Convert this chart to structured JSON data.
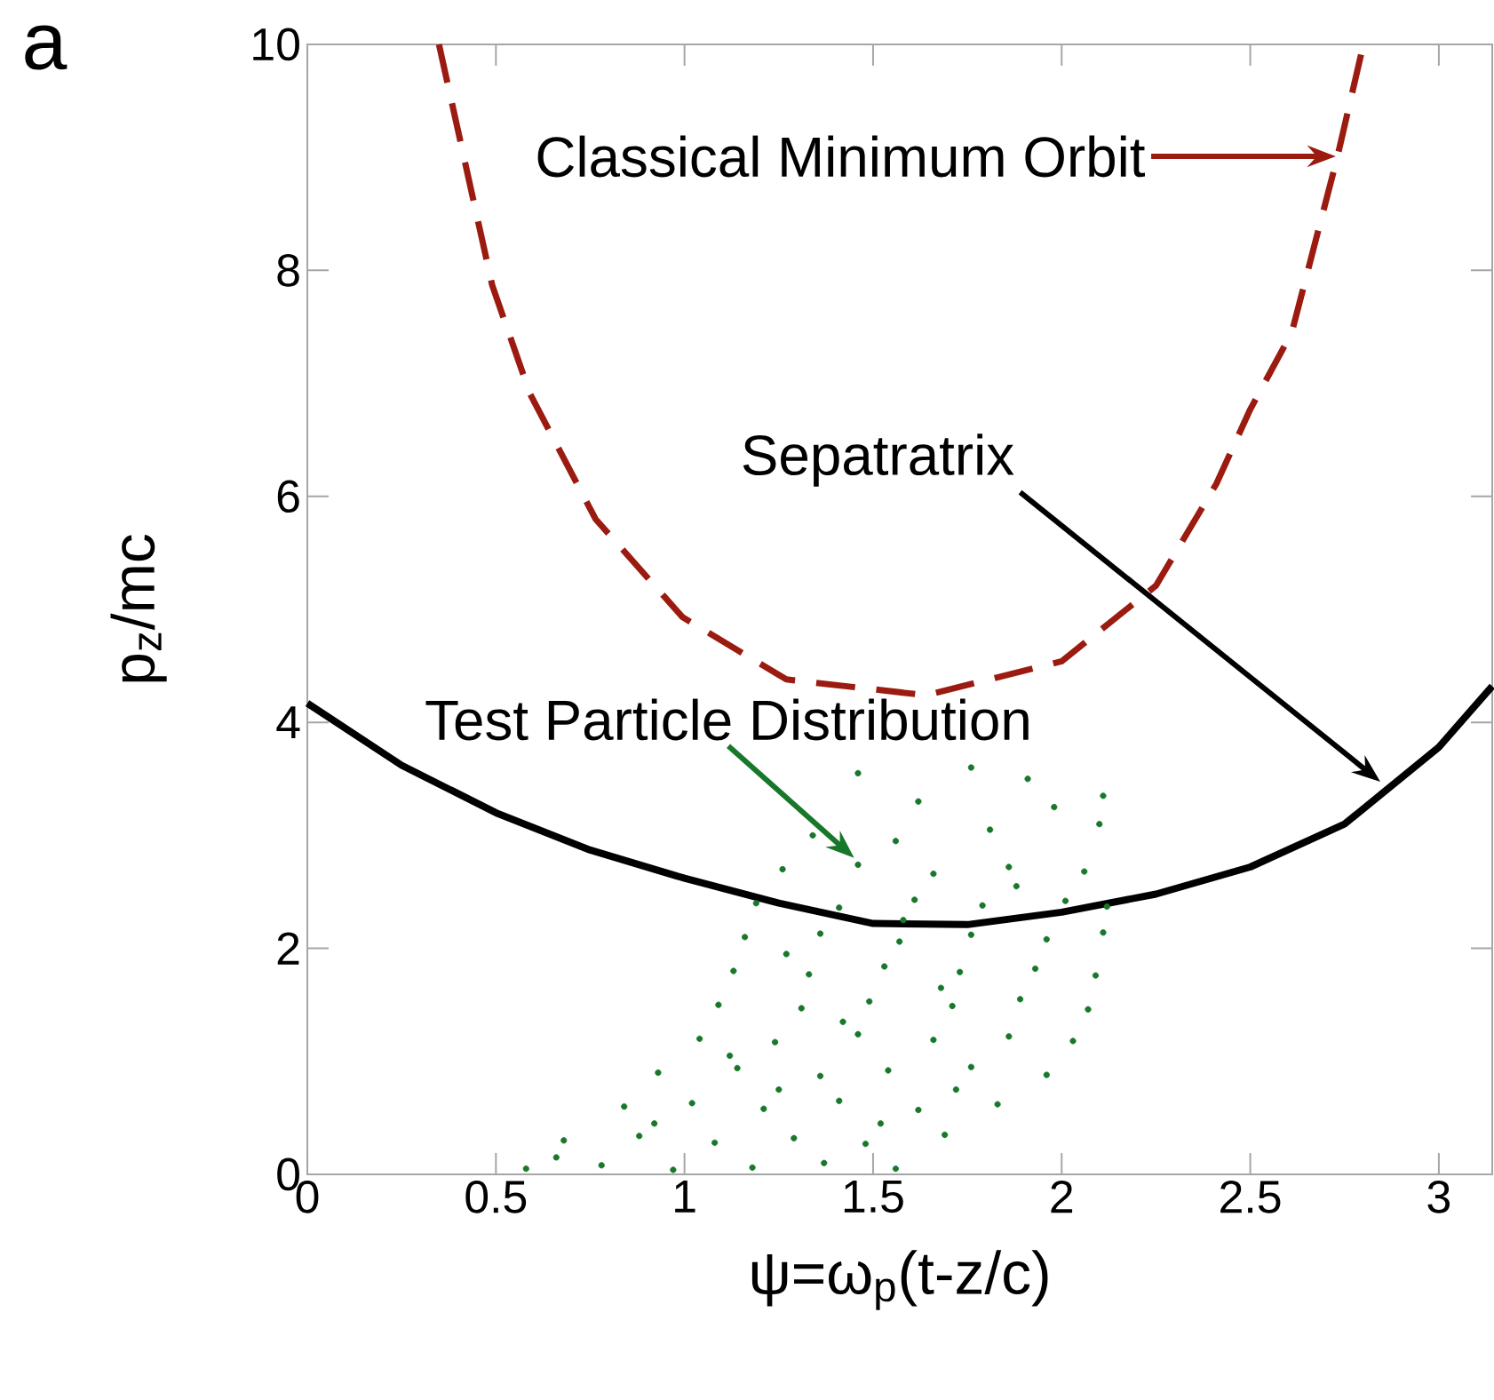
{
  "chart_data": {
    "type": "line",
    "title": "a",
    "xlabel": "ψ=ω$_{p}$(t-z/c)",
    "ylabel": "p$_{z}$/mc",
    "xlim": [
      0,
      3.1416
    ],
    "ylim": [
      0,
      10
    ],
    "xticks": [
      0,
      0.5,
      1,
      1.5,
      2,
      2.5,
      3
    ],
    "yticks": [
      0,
      2,
      4,
      6,
      8,
      10
    ],
    "grid": false,
    "series": [
      {
        "type": "scatter",
        "marker": "circle",
        "color": "#17782a",
        "x": [
          0.58,
          0.78,
          0.97,
          1.18,
          1.37,
          1.56,
          0.68,
          0.88,
          1.08,
          1.29,
          1.48,
          1.69,
          0.84,
          1.02,
          1.21,
          1.41,
          1.62,
          1.83,
          0.93,
          1.14,
          1.36,
          1.54,
          1.76,
          1.96,
          1.04,
          1.24,
          1.46,
          1.66,
          1.86,
          2.03,
          1.09,
          1.31,
          1.49,
          1.71,
          1.89,
          2.07,
          1.13,
          1.33,
          1.53,
          1.73,
          1.93,
          2.09,
          1.16,
          1.36,
          1.57,
          1.76,
          1.96,
          2.11,
          1.19,
          1.41,
          1.61,
          1.79,
          2.01,
          2.12,
          1.26,
          1.46,
          1.66,
          1.86,
          2.06,
          1.34,
          1.56,
          1.81,
          2.1,
          1.62,
          1.98,
          2.11,
          1.46,
          1.76,
          1.91,
          0.66,
          0.92,
          1.25,
          1.52,
          1.72,
          1.12,
          1.42,
          1.68,
          1.27,
          1.58,
          1.88
        ],
        "values": [
          0.05,
          0.08,
          0.04,
          0.06,
          0.1,
          0.05,
          0.3,
          0.34,
          0.28,
          0.32,
          0.27,
          0.35,
          0.6,
          0.63,
          0.58,
          0.65,
          0.57,
          0.62,
          0.9,
          0.94,
          0.87,
          0.92,
          0.95,
          0.88,
          1.2,
          1.17,
          1.24,
          1.19,
          1.22,
          1.18,
          1.5,
          1.47,
          1.53,
          1.49,
          1.55,
          1.46,
          1.8,
          1.77,
          1.84,
          1.79,
          1.82,
          1.76,
          2.1,
          2.13,
          2.06,
          2.12,
          2.08,
          2.14,
          2.4,
          2.36,
          2.43,
          2.38,
          2.42,
          2.37,
          2.7,
          2.74,
          2.66,
          2.72,
          2.68,
          3.0,
          2.95,
          3.05,
          3.1,
          3.3,
          3.25,
          3.35,
          3.55,
          3.6,
          3.5,
          0.15,
          0.45,
          0.75,
          0.45,
          0.75,
          1.05,
          1.35,
          1.65,
          1.95,
          2.25,
          2.55
        ]
      },
      {
        "type": "line",
        "line_style": "solid",
        "color": "#000000",
        "x": [
          0,
          0.25,
          0.5,
          0.75,
          1,
          1.25,
          1.5,
          1.75,
          2,
          2.25,
          2.5,
          2.75,
          3,
          3.1416
        ],
        "values": [
          4.17,
          3.62,
          3.2,
          2.87,
          2.62,
          2.4,
          2.22,
          2.21,
          2.32,
          2.48,
          2.72,
          3.1,
          3.78,
          4.32
        ]
      },
      {
        "type": "line",
        "line_style": "dashed",
        "color": "#9b1b10",
        "x": [
          0.349,
          0.49,
          0.59,
          0.764,
          0.995,
          1.27,
          1.64,
          2.0,
          2.25,
          2.41,
          2.5,
          2.61,
          2.73,
          2.8
        ],
        "values": [
          10.0,
          7.87,
          6.91,
          5.8,
          4.93,
          4.38,
          4.24,
          4.54,
          5.21,
          6.11,
          6.77,
          7.45,
          8.99,
          10.0
        ]
      }
    ],
    "annotations": [
      "Classical Minimum Orbit",
      "Sepatratrix",
      {
        "text": "Test Particle Distribution",
        "x": 1.45,
        "y": 2.8
      }
    ]
  }
}
